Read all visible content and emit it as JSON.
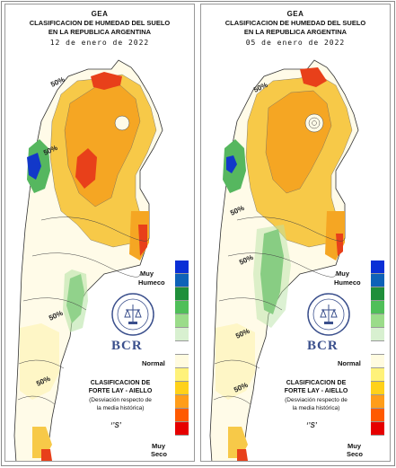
{
  "header": {
    "org": "GEA",
    "title1": "CLASIFICACION DE HUMEDAD DEL SUELO",
    "title2": "EN LA REPUBLICA ARGENTINA"
  },
  "panels": [
    {
      "date": "12 de enero de 2022",
      "contour_label": "50%"
    },
    {
      "date": "05 de enero de 2022",
      "contour_label": "50%"
    }
  ],
  "legend": {
    "top_label_1": "Muy",
    "top_label_2": "Humeco",
    "mid_label": "Normal",
    "bottom_label_1": "Muy",
    "bottom_label_2": "Seco",
    "colors": [
      "#0a2fd6",
      "#0e62b8",
      "#1f8f3a",
      "#4fbf59",
      "#9bdc8a",
      "#d8f0d0",
      "#ffffff",
      "#fffbe0",
      "#fff27a",
      "#ffd11a",
      "#ff9d1a",
      "#ff5a00",
      "#e60000"
    ]
  },
  "branding": {
    "bcr": "BCR",
    "seal_text": "BOLSA DE COMERCIO DE ROSARIO",
    "clas_title1": "CLASIFICACION DE",
    "clas_title2": "FORTE LAY - AIELLO",
    "clas_note1": "(Desviación respecto de",
    "clas_note2": "la media histórica)",
    "mark": "‘’S’"
  },
  "colors": {
    "dry_orange": "#f5a623",
    "dry_yellow": "#f7c948",
    "very_dry": "#e8401a",
    "light_yellow": "#fdf3b8",
    "normal": "#fffbe8",
    "wet_green": "#56b75f",
    "light_green": "#b9e4a8",
    "very_wet": "#1238c9",
    "brand_blue": "#3a4f8c"
  }
}
